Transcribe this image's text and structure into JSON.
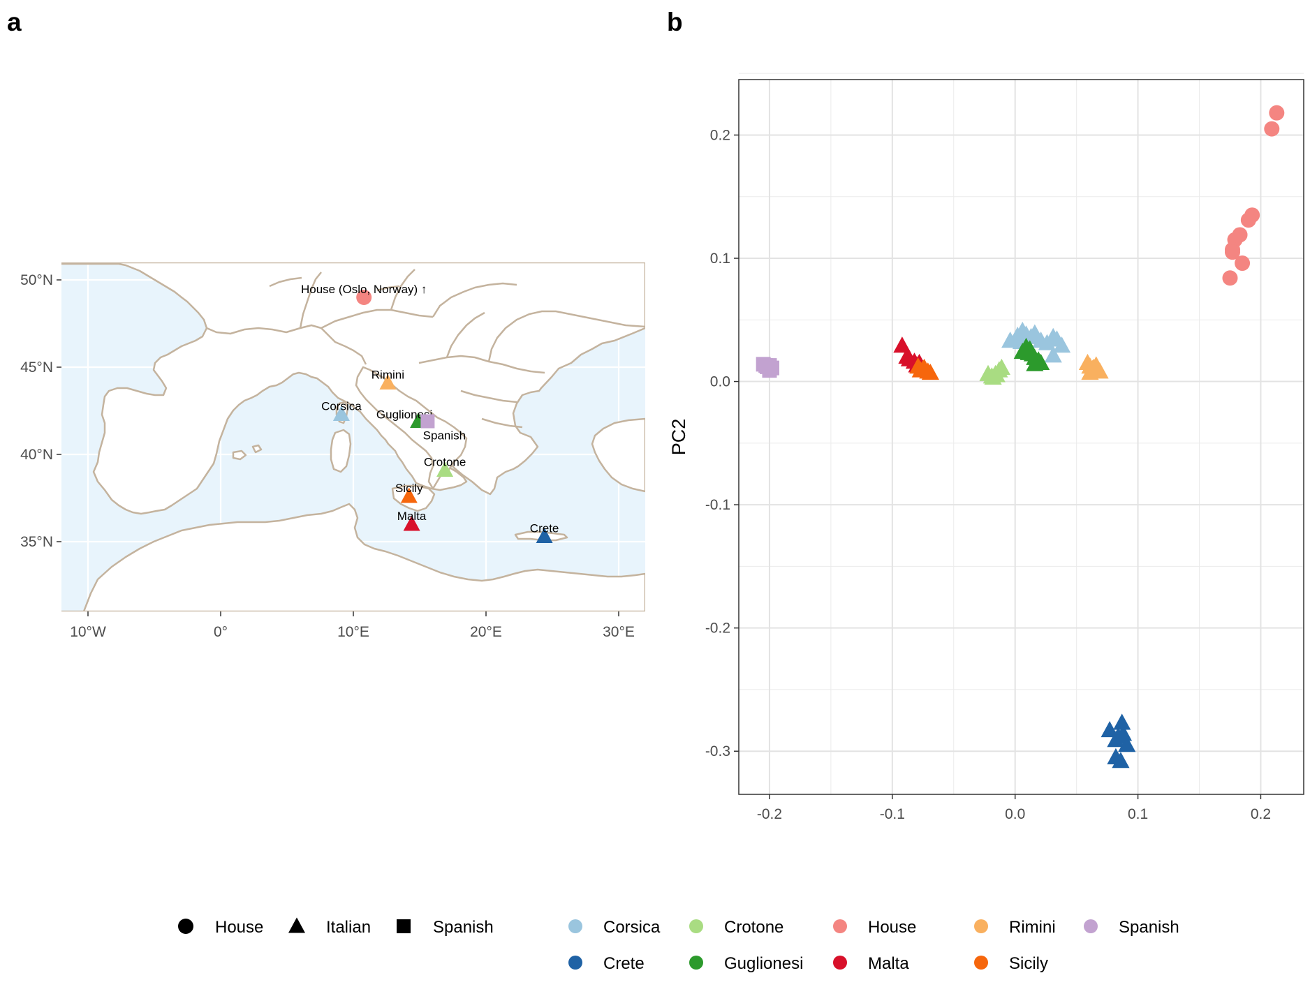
{
  "panels": {
    "a": "a",
    "b": "b"
  },
  "chart_data": [
    {
      "type": "map",
      "panel": "a",
      "xlim": [
        -12,
        32
      ],
      "ylim": [
        31,
        51
      ],
      "x_ticks": [
        {
          "value": -10,
          "label": "10°W"
        },
        {
          "value": 0,
          "label": "0°"
        },
        {
          "value": 10,
          "label": "10°E"
        },
        {
          "value": 20,
          "label": "20°E"
        },
        {
          "value": 30,
          "label": "30°E"
        }
      ],
      "y_ticks": [
        {
          "value": 35,
          "label": "35°N"
        },
        {
          "value": 40,
          "label": "40°N"
        },
        {
          "value": 45,
          "label": "45°N"
        },
        {
          "value": 50,
          "label": "50°N"
        }
      ],
      "points": [
        {
          "label": "House (Oslo, Norway) ↑",
          "lon": 10.8,
          "lat": 49.0,
          "population": "House",
          "group": "House"
        },
        {
          "label": "Rimini",
          "lon": 12.6,
          "lat": 44.1,
          "population": "Rimini",
          "group": "Italian"
        },
        {
          "label": "Corsica",
          "lon": 9.1,
          "lat": 42.3,
          "population": "Corsica",
          "group": "Italian"
        },
        {
          "label": "Guglionesi",
          "lon": 14.9,
          "lat": 41.9,
          "population": "Guglionesi",
          "group": "Italian"
        },
        {
          "label": "Spanish",
          "lon": 15.6,
          "lat": 41.9,
          "population": "Spanish",
          "group": "Spanish"
        },
        {
          "label": "Crotone",
          "lon": 16.9,
          "lat": 39.1,
          "population": "Crotone",
          "group": "Italian"
        },
        {
          "label": "Sicily",
          "lon": 14.2,
          "lat": 37.6,
          "population": "Sicily",
          "group": "Italian"
        },
        {
          "label": "Malta",
          "lon": 14.4,
          "lat": 36.0,
          "population": "Malta",
          "group": "Italian"
        },
        {
          "label": "Crete",
          "lon": 24.4,
          "lat": 35.3,
          "population": "Crete",
          "group": "Italian"
        }
      ]
    },
    {
      "type": "scatter",
      "panel": "b",
      "xlabel": "",
      "ylabel": "PC2",
      "xlim": [
        -0.225,
        0.235
      ],
      "ylim": [
        -0.335,
        0.245
      ],
      "x_ticks": [
        -0.2,
        -0.1,
        0.0,
        0.1,
        0.2
      ],
      "x_tick_labels": [
        "-0.2",
        "-0.1",
        "0.0",
        "0.1",
        "0.2"
      ],
      "y_ticks": [
        -0.3,
        -0.2,
        -0.1,
        0.0,
        0.1,
        0.2
      ],
      "y_tick_labels": [
        "-0.3",
        "-0.2",
        "-0.1",
        "0.0",
        "0.1",
        "0.2"
      ],
      "grid": true,
      "series": [
        {
          "name": "House",
          "shape": "circle",
          "points": [
            [
              0.213,
              0.218
            ],
            [
              0.209,
              0.205
            ],
            [
              0.193,
              0.135
            ],
            [
              0.19,
              0.131
            ],
            [
              0.183,
              0.119
            ],
            [
              0.179,
              0.115
            ],
            [
              0.177,
              0.107
            ],
            [
              0.177,
              0.105
            ],
            [
              0.185,
              0.096
            ],
            [
              0.175,
              0.084
            ]
          ]
        },
        {
          "name": "Spanish",
          "shape": "square",
          "points": [
            [
              -0.205,
              0.014
            ],
            [
              -0.203,
              0.013
            ],
            [
              -0.2,
              0.013
            ],
            [
              -0.198,
              0.011
            ],
            [
              -0.2,
              0.009
            ],
            [
              -0.202,
              0.012
            ]
          ]
        },
        {
          "name": "Malta",
          "shape": "triangle",
          "points": [
            [
              -0.092,
              0.029
            ],
            [
              -0.088,
              0.02
            ],
            [
              -0.086,
              0.018
            ],
            [
              -0.082,
              0.016
            ],
            [
              -0.078,
              0.015
            ],
            [
              -0.08,
              0.013
            ]
          ]
        },
        {
          "name": "Sicily",
          "shape": "triangle",
          "points": [
            [
              -0.079,
              0.012
            ],
            [
              -0.077,
              0.009
            ],
            [
              -0.074,
              0.011
            ],
            [
              -0.071,
              0.008
            ],
            [
              -0.069,
              0.007
            ],
            [
              -0.075,
              0.01
            ]
          ]
        },
        {
          "name": "Crotone",
          "shape": "triangle",
          "points": [
            [
              -0.022,
              0.006
            ],
            [
              -0.019,
              0.004
            ],
            [
              -0.016,
              0.006
            ],
            [
              -0.013,
              0.009
            ],
            [
              -0.011,
              0.011
            ],
            [
              -0.018,
              0.003
            ],
            [
              -0.015,
              0.005
            ]
          ]
        },
        {
          "name": "Corsica",
          "shape": "triangle",
          "points": [
            [
              -0.004,
              0.033
            ],
            [
              0.002,
              0.037
            ],
            [
              0.006,
              0.041
            ],
            [
              0.009,
              0.038
            ],
            [
              0.013,
              0.036
            ],
            [
              0.016,
              0.039
            ],
            [
              0.021,
              0.033
            ],
            [
              0.026,
              0.031
            ],
            [
              0.031,
              0.036
            ],
            [
              0.034,
              0.034
            ],
            [
              0.038,
              0.029
            ],
            [
              0.031,
              0.021
            ],
            [
              0.005,
              0.032
            ]
          ]
        },
        {
          "name": "Guglionesi",
          "shape": "triangle",
          "points": [
            [
              0.006,
              0.024
            ],
            [
              0.009,
              0.028
            ],
            [
              0.012,
              0.026
            ],
            [
              0.014,
              0.022
            ],
            [
              0.016,
              0.019
            ],
            [
              0.019,
              0.017
            ],
            [
              0.021,
              0.015
            ],
            [
              0.016,
              0.014
            ],
            [
              0.011,
              0.023
            ]
          ]
        },
        {
          "name": "Rimini",
          "shape": "triangle",
          "points": [
            [
              0.059,
              0.015
            ],
            [
              0.061,
              0.012
            ],
            [
              0.063,
              0.01
            ],
            [
              0.066,
              0.013
            ],
            [
              0.069,
              0.008
            ],
            [
              0.061,
              0.007
            ],
            [
              0.064,
              0.011
            ]
          ]
        },
        {
          "name": "Crete",
          "shape": "triangle",
          "points": [
            [
              0.087,
              -0.277
            ],
            [
              0.077,
              -0.283
            ],
            [
              0.084,
              -0.288
            ],
            [
              0.082,
              -0.291
            ],
            [
              0.091,
              -0.295
            ],
            [
              0.088,
              -0.286
            ],
            [
              0.082,
              -0.305
            ],
            [
              0.086,
              -0.308
            ]
          ]
        }
      ]
    }
  ],
  "legend": {
    "shapes": [
      {
        "label": "House",
        "shape": "circle"
      },
      {
        "label": "Italian",
        "shape": "triangle"
      },
      {
        "label": "Spanish",
        "shape": "square"
      }
    ],
    "populations": [
      {
        "label": "Corsica",
        "color": "#9ac5de"
      },
      {
        "label": "Crete",
        "color": "#1f62a5"
      },
      {
        "label": "Crotone",
        "color": "#a9dc82"
      },
      {
        "label": "Guglionesi",
        "color": "#2c9a2c"
      },
      {
        "label": "House",
        "color": "#f48581"
      },
      {
        "label": "Malta",
        "color": "#d8102a"
      },
      {
        "label": "Rimini",
        "color": "#f9b05f"
      },
      {
        "label": "Sicily",
        "color": "#f6660c"
      },
      {
        "label": "Spanish",
        "color": "#c2a2d0"
      }
    ]
  },
  "colors": {
    "sea": "#e8f4fc",
    "coast": "#c4b39e",
    "grid": "#ffffff",
    "panel_grid": "#e6e6e6"
  }
}
